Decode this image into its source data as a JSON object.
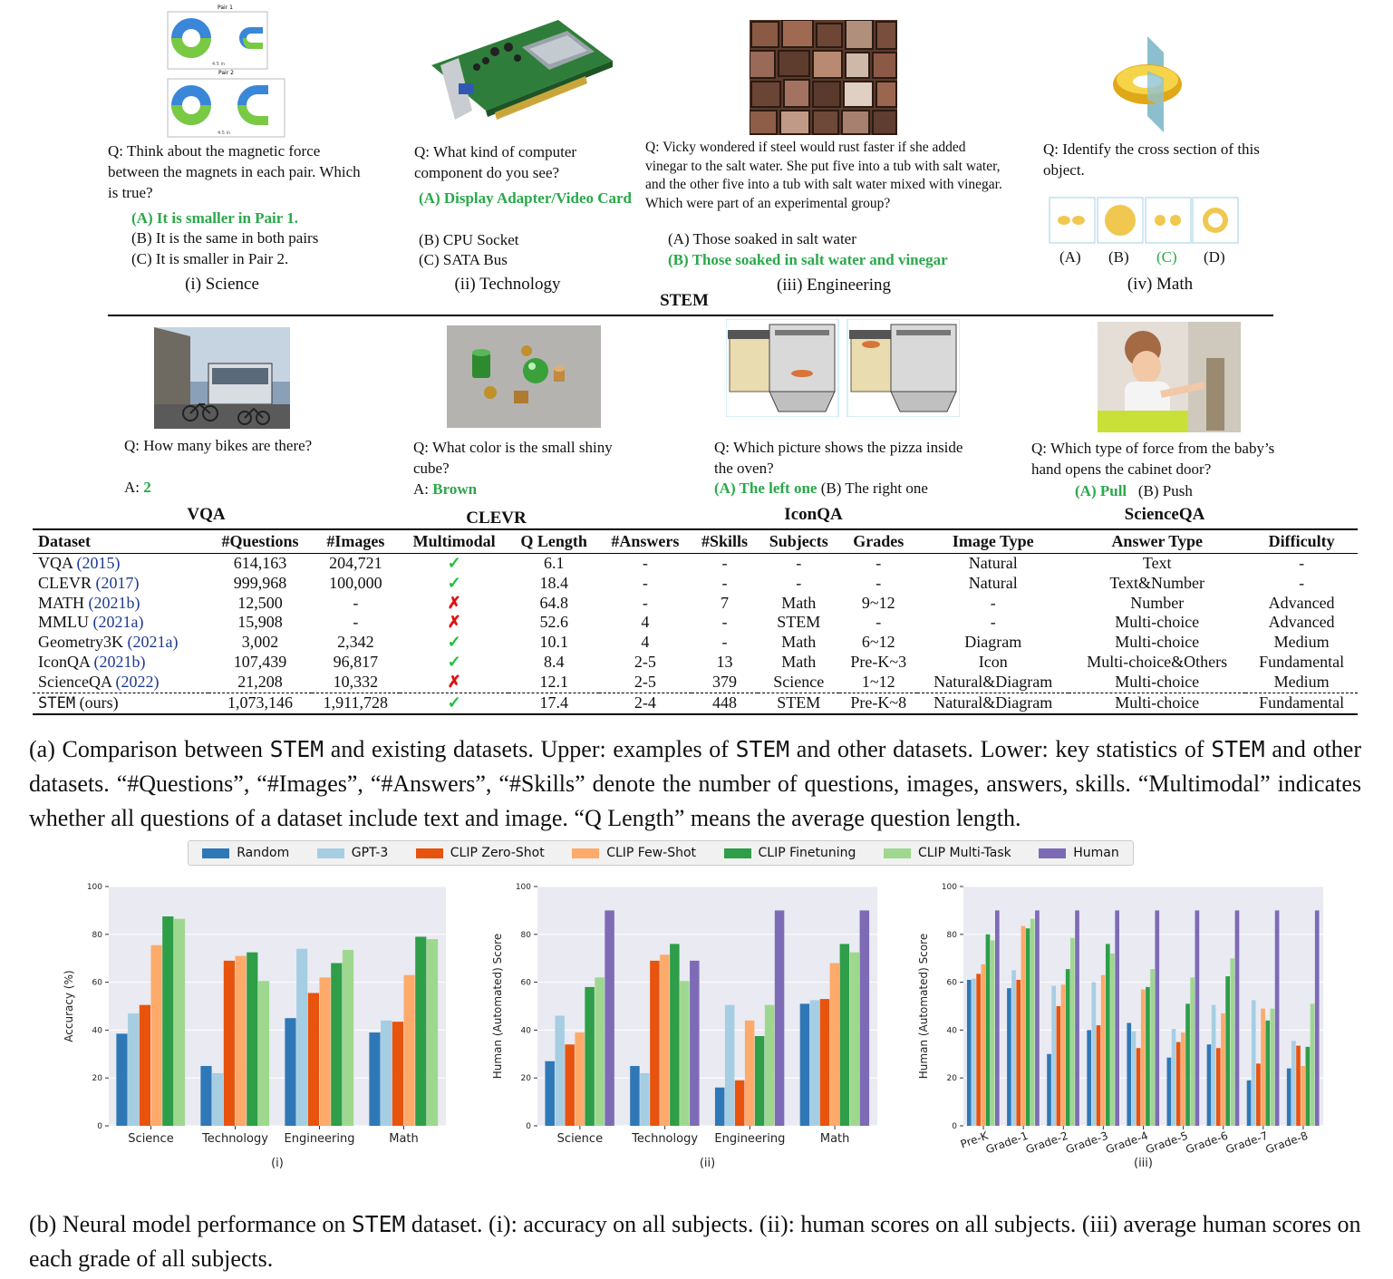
{
  "stem_examples": [
    {
      "question": "Q: Think about the magnetic force between the magnets in each pair. Which is true?",
      "options": [
        {
          "text": "(A) It is smaller in Pair 1.",
          "correct": true
        },
        {
          "text": "(B) It is the same in both pairs",
          "correct": false
        },
        {
          "text": "(C) It is smaller in Pair 2.",
          "correct": false
        }
      ],
      "caption": "(i) Science",
      "image_labels": {
        "pair1": "Pair 1",
        "pair2": "Pair 2",
        "dist1": "4.5 in",
        "dist2": "4.5 in",
        "s": "S",
        "n": "N"
      }
    },
    {
      "question": "Q: What kind of computer component do you see?",
      "options": [
        {
          "text": "(A) Display Adapter/Video Card",
          "correct": true
        },
        {
          "text": "(B) CPU Socket",
          "correct": false
        },
        {
          "text": "(C) SATA Bus",
          "correct": false
        }
      ],
      "caption": "(ii) Technology"
    },
    {
      "question": "Q: Vicky wondered if steel would rust faster if she added vinegar to the salt water. She put five into a tub with salt water, and the other five into a tub with salt water mixed with vinegar. Which were part of an experimental group?",
      "options": [
        {
          "text": "(A) Those soaked in salt water",
          "correct": false
        },
        {
          "text": "(B) Those soaked in salt water and vinegar",
          "correct": true
        }
      ],
      "caption": "(iii) Engineering"
    },
    {
      "question": "Q: Identify the cross section of this object.",
      "choices": [
        "(A)",
        "(B)",
        "(C)",
        "(D)"
      ],
      "correct_choice": "(C)",
      "caption": "(iv) Math"
    }
  ],
  "stem_label": "STEM",
  "other_examples": [
    {
      "question": "Q: How many bikes are there?",
      "answer_prefix": "A:",
      "answer": "2",
      "label": "VQA"
    },
    {
      "question": "Q: What color is the small shiny cube?",
      "answer_prefix": "A:",
      "answer": "Brown",
      "label": "CLEVR"
    },
    {
      "question": "Q: Which picture shows the pizza inside the oven?",
      "answer": "(A) The left one",
      "other": "(B) The right one",
      "label": "IconQA"
    },
    {
      "question": "Q: Which type of force from the baby’s hand opens the cabinet door?",
      "answer": "(A) Pull",
      "other": "(B) Push",
      "label": "ScienceQA"
    }
  ],
  "table": {
    "headers": [
      "Dataset",
      "#Questions",
      "#Images",
      "Multimodal",
      "Q Length",
      "#Answers",
      "#Skills",
      "Subjects",
      "Grades",
      "Image Type",
      "Answer Type",
      "Difficulty"
    ],
    "rows": [
      {
        "name": "VQA",
        "year": "(2015)",
        "cells": [
          "614,163",
          "204,721",
          "✓",
          "6.1",
          "-",
          "-",
          "-",
          "-",
          "Natural",
          "Text",
          "-"
        ]
      },
      {
        "name": "CLEVR",
        "year": "(2017)",
        "cells": [
          "999,968",
          "100,000",
          "✓",
          "18.4",
          "-",
          "-",
          "-",
          "-",
          "Natural",
          "Text&Number",
          "-"
        ]
      },
      {
        "name": "MATH",
        "year": "(2021b)",
        "cells": [
          "12,500",
          "-",
          "✗",
          "64.8",
          "-",
          "7",
          "Math",
          "9~12",
          "-",
          "Number",
          "Advanced"
        ]
      },
      {
        "name": "MMLU",
        "year": "(2021a)",
        "cells": [
          "15,908",
          "-",
          "✗",
          "52.6",
          "4",
          "-",
          "STEM",
          "-",
          "-",
          "Multi-choice",
          "Advanced"
        ]
      },
      {
        "name": "Geometry3K",
        "year": "(2021a)",
        "cells": [
          "3,002",
          "2,342",
          "✓",
          "10.1",
          "4",
          "-",
          "Math",
          "6~12",
          "Diagram",
          "Multi-choice",
          "Medium"
        ]
      },
      {
        "name": "IconQA",
        "year": "(2021b)",
        "cells": [
          "107,439",
          "96,817",
          "✓",
          "8.4",
          "2-5",
          "13",
          "Math",
          "Pre-K~3",
          "Icon",
          "Multi-choice&Others",
          "Fundamental"
        ]
      },
      {
        "name": "ScienceQA",
        "year": "(2022)",
        "cells": [
          "21,208",
          "10,332",
          "✗",
          "12.1",
          "2-5",
          "379",
          "Science",
          "1~12",
          "Natural&Diagram",
          "Multi-choice",
          "Medium"
        ]
      }
    ],
    "ours": {
      "name": "STEM",
      "suffix": "(ours)",
      "cells": [
        "1,073,146",
        "1,911,728",
        "✓",
        "17.4",
        "2-4",
        "448",
        "STEM",
        "Pre-K~8",
        "Natural&Diagram",
        "Multi-choice",
        "Fundamental"
      ]
    }
  },
  "caption_a": {
    "p1": "(a) Comparison between ",
    "p2": " and existing datasets. Upper: examples of ",
    "p3": " and other datasets. Lower: key statistics of ",
    "p4": " and other datasets. “#Questions”, “#Images”, “#Answers”, “#Skills” denote the number of questions, images, answers, skills. “Multimodal” indicates whether all questions of a dataset include text and image. “Q Length” means the average question length.",
    "stem": "STEM"
  },
  "legend": [
    {
      "name": "Random",
      "color": "#2f78b7"
    },
    {
      "name": "GPT-3",
      "color": "#a6cee3"
    },
    {
      "name": "CLIP Zero-Shot",
      "color": "#e8530e"
    },
    {
      "name": "CLIP Few-Shot",
      "color": "#fdaa6b"
    },
    {
      "name": "CLIP Finetuning",
      "color": "#2e9e48"
    },
    {
      "name": "CLIP Multi-Task",
      "color": "#9ed88f"
    },
    {
      "name": "Human",
      "color": "#7d6bb6"
    }
  ],
  "chart_data": [
    {
      "type": "bar",
      "categories": [
        "Science",
        "Technology",
        "Engineering",
        "Math"
      ],
      "ylabel": "Accuracy (%)",
      "ylim": [
        0,
        100
      ],
      "yticks": [
        0,
        20,
        40,
        60,
        80,
        100
      ],
      "caption": "(i)",
      "series": [
        {
          "name": "Random",
          "values": [
            38.5,
            25,
            45,
            39
          ]
        },
        {
          "name": "GPT-3",
          "values": [
            47,
            22,
            74,
            44
          ]
        },
        {
          "name": "CLIP Zero-Shot",
          "values": [
            50.5,
            69,
            55.5,
            43.5
          ]
        },
        {
          "name": "CLIP Few-Shot",
          "values": [
            75.5,
            71,
            62,
            63
          ]
        },
        {
          "name": "CLIP Finetuning",
          "values": [
            87.5,
            72.5,
            68,
            79
          ]
        },
        {
          "name": "CLIP Multi-Task",
          "values": [
            86.5,
            60.5,
            73.5,
            78
          ]
        }
      ]
    },
    {
      "type": "bar",
      "categories": [
        "Science",
        "Technology",
        "Engineering",
        "Math"
      ],
      "ylabel": "Human (Automated) Score",
      "ylim": [
        0,
        100
      ],
      "yticks": [
        0,
        20,
        40,
        60,
        80,
        100
      ],
      "caption": "(ii)",
      "series": [
        {
          "name": "Random",
          "values": [
            27,
            25,
            16,
            51
          ]
        },
        {
          "name": "GPT-3",
          "values": [
            46,
            22,
            50.5,
            52.5
          ]
        },
        {
          "name": "CLIP Zero-Shot",
          "values": [
            34,
            69,
            19,
            53
          ]
        },
        {
          "name": "CLIP Few-Shot",
          "values": [
            39,
            71.5,
            44,
            68
          ]
        },
        {
          "name": "CLIP Finetuning",
          "values": [
            58,
            76,
            37.5,
            76
          ]
        },
        {
          "name": "CLIP Multi-Task",
          "values": [
            62,
            60.5,
            50.5,
            72.5
          ]
        },
        {
          "name": "Human",
          "values": [
            90,
            69,
            90,
            90
          ]
        }
      ]
    },
    {
      "type": "bar",
      "categories": [
        "Pre-K",
        "Grade-1",
        "Grade-2",
        "Grade-3",
        "Grade-4",
        "Grade-5",
        "Grade-6",
        "Grade-7",
        "Grade-8"
      ],
      "ylabel": "Human (Automated) Score",
      "ylim": [
        0,
        100
      ],
      "yticks": [
        0,
        20,
        40,
        60,
        80,
        100
      ],
      "caption": "(iii)",
      "series": [
        {
          "name": "Random",
          "values": [
            61,
            57.5,
            30,
            40,
            43,
            28.5,
            34,
            19,
            24
          ]
        },
        {
          "name": "GPT-3",
          "values": [
            61.5,
            65,
            58.5,
            60,
            39.5,
            40.5,
            50.5,
            52.5,
            35.5
          ]
        },
        {
          "name": "CLIP Zero-Shot",
          "values": [
            63.5,
            61,
            50,
            42,
            32.5,
            35,
            32.5,
            26,
            33.5
          ]
        },
        {
          "name": "CLIP Few-Shot",
          "values": [
            67.5,
            83.5,
            59,
            63,
            57,
            39,
            47,
            49,
            25
          ]
        },
        {
          "name": "CLIP Finetuning",
          "values": [
            80,
            82.5,
            65.5,
            76,
            58,
            51,
            62.5,
            44,
            33
          ]
        },
        {
          "name": "CLIP Multi-Task",
          "values": [
            77.5,
            86.5,
            78.5,
            72,
            65.5,
            62,
            70,
            49,
            51
          ]
        },
        {
          "name": "Human",
          "values": [
            90,
            90,
            90,
            90,
            90,
            90,
            90,
            90,
            90
          ]
        }
      ]
    }
  ],
  "caption_b": {
    "p1": "(b) Neural model performance on ",
    "stem": "STEM",
    "p2": " dataset. (i): accuracy on all subjects. (ii): human scores on all subjects. (iii) average human scores on each grade of all subjects."
  }
}
